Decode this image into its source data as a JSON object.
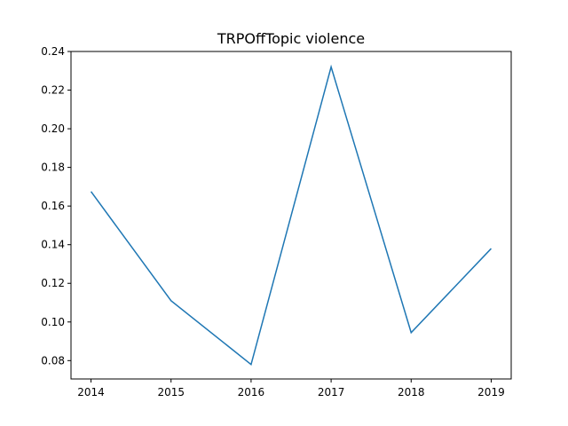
{
  "chart_data": {
    "type": "line",
    "title": "TRPOffTopic violence",
    "xlabel": "",
    "ylabel": "",
    "x": [
      2014,
      2015,
      2016,
      2017,
      2018,
      2019
    ],
    "series": [
      {
        "values": [
          0.1675,
          0.111,
          0.078,
          0.232,
          0.0945,
          0.138
        ]
      }
    ],
    "x_ticks": [
      "2014",
      "2015",
      "2016",
      "2017",
      "2018",
      "2019"
    ],
    "y_ticks": [
      "0.08",
      "0.10",
      "0.12",
      "0.14",
      "0.16",
      "0.18",
      "0.20",
      "0.22",
      "0.24"
    ],
    "xlim": [
      2013.75,
      2019.25
    ],
    "ylim": [
      0.0705,
      0.24
    ],
    "grid": false,
    "line_color": "#1f77b4"
  }
}
